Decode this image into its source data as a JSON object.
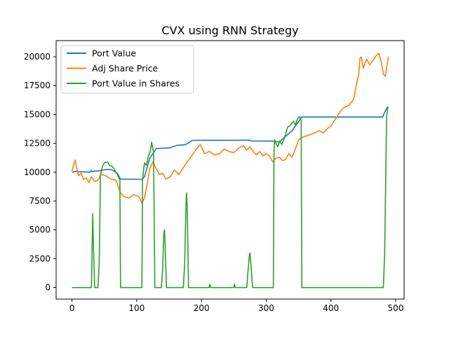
{
  "chart_data": {
    "type": "line",
    "title": "CVX using RNN Strategy",
    "xlabel": "",
    "ylabel": "",
    "xlim": [
      -24.5,
      513
    ],
    "ylim": [
      -1000,
      21400
    ],
    "xticks": [
      0,
      100,
      200,
      300,
      400,
      500
    ],
    "yticks": [
      0,
      2500,
      5000,
      7500,
      10000,
      12500,
      15000,
      17500,
      20000
    ],
    "grid": false,
    "legend_position": "top-left",
    "series": [
      {
        "name": "Port Value",
        "color": "#1f77b4",
        "points": [
          [
            0,
            10000
          ],
          [
            5,
            10050
          ],
          [
            28,
            10000
          ],
          [
            30,
            10150
          ],
          [
            32,
            10050
          ],
          [
            35,
            10100
          ],
          [
            40,
            10100
          ],
          [
            45,
            10150
          ],
          [
            55,
            10250
          ],
          [
            62,
            10200
          ],
          [
            70,
            9900
          ],
          [
            75,
            9400
          ],
          [
            108,
            9380
          ],
          [
            112,
            9600
          ],
          [
            120,
            11200
          ],
          [
            130,
            12050
          ],
          [
            150,
            12100
          ],
          [
            162,
            12320
          ],
          [
            175,
            12380
          ],
          [
            182,
            12600
          ],
          [
            185,
            12750
          ],
          [
            205,
            12760
          ],
          [
            250,
            12760
          ],
          [
            275,
            12780
          ],
          [
            277,
            12700
          ],
          [
            295,
            12690
          ],
          [
            310,
            12700
          ],
          [
            320,
            12600
          ],
          [
            340,
            13600
          ],
          [
            355,
            14780
          ],
          [
            480,
            14780
          ],
          [
            483,
            15200
          ],
          [
            486,
            15500
          ],
          [
            488,
            15700
          ]
        ]
      },
      {
        "name": "Adj Share Price",
        "color": "#ff7f0e",
        "points": [
          [
            0,
            10100
          ],
          [
            3,
            10700
          ],
          [
            5,
            11050
          ],
          [
            7,
            10400
          ],
          [
            10,
            9700
          ],
          [
            14,
            9900
          ],
          [
            18,
            9350
          ],
          [
            22,
            9500
          ],
          [
            26,
            9100
          ],
          [
            30,
            9600
          ],
          [
            35,
            9200
          ],
          [
            40,
            9300
          ],
          [
            45,
            9800
          ],
          [
            52,
            9700
          ],
          [
            60,
            9400
          ],
          [
            68,
            9300
          ],
          [
            75,
            8200
          ],
          [
            80,
            7900
          ],
          [
            88,
            7750
          ],
          [
            95,
            8050
          ],
          [
            103,
            7900
          ],
          [
            108,
            7300
          ],
          [
            112,
            7800
          ],
          [
            116,
            8900
          ],
          [
            120,
            10300
          ],
          [
            125,
            10900
          ],
          [
            130,
            10300
          ],
          [
            135,
            9800
          ],
          [
            140,
            9900
          ],
          [
            145,
            9400
          ],
          [
            152,
            9600
          ],
          [
            158,
            10200
          ],
          [
            165,
            9800
          ],
          [
            172,
            10400
          ],
          [
            178,
            10900
          ],
          [
            185,
            11400
          ],
          [
            192,
            12000
          ],
          [
            198,
            12400
          ],
          [
            205,
            11600
          ],
          [
            212,
            11800
          ],
          [
            220,
            11500
          ],
          [
            228,
            11600
          ],
          [
            235,
            12000
          ],
          [
            242,
            11800
          ],
          [
            250,
            11700
          ],
          [
            258,
            12100
          ],
          [
            265,
            12300
          ],
          [
            270,
            11900
          ],
          [
            275,
            12200
          ],
          [
            280,
            11800
          ],
          [
            285,
            11500
          ],
          [
            290,
            11800
          ],
          [
            295,
            11400
          ],
          [
            300,
            11600
          ],
          [
            305,
            11400
          ],
          [
            310,
            10900
          ],
          [
            315,
            11200
          ],
          [
            320,
            11300
          ],
          [
            325,
            11000
          ],
          [
            330,
            11100
          ],
          [
            335,
            11600
          ],
          [
            340,
            11300
          ],
          [
            345,
            12000
          ],
          [
            350,
            12800
          ],
          [
            355,
            13000
          ],
          [
            365,
            13200
          ],
          [
            375,
            13400
          ],
          [
            382,
            13600
          ],
          [
            388,
            13400
          ],
          [
            395,
            13800
          ],
          [
            400,
            14000
          ],
          [
            408,
            14700
          ],
          [
            415,
            15300
          ],
          [
            420,
            15600
          ],
          [
            428,
            15800
          ],
          [
            435,
            16300
          ],
          [
            440,
            17800
          ],
          [
            443,
            18500
          ],
          [
            445,
            19900
          ],
          [
            447,
            20000
          ],
          [
            450,
            19000
          ],
          [
            455,
            19800
          ],
          [
            460,
            19300
          ],
          [
            465,
            19700
          ],
          [
            470,
            20100
          ],
          [
            474,
            20300
          ],
          [
            478,
            19500
          ],
          [
            481,
            18500
          ],
          [
            484,
            18300
          ],
          [
            487,
            19400
          ],
          [
            489,
            20000
          ]
        ]
      },
      {
        "name": "Port Value in Shares",
        "color": "#2ca02c",
        "points": [
          [
            0,
            0
          ],
          [
            30,
            0
          ],
          [
            31,
            3000
          ],
          [
            32,
            6400
          ],
          [
            33,
            4000
          ],
          [
            34,
            2000
          ],
          [
            35,
            0
          ],
          [
            40,
            0
          ],
          [
            42,
            2000
          ],
          [
            44,
            9800
          ],
          [
            47,
            10500
          ],
          [
            50,
            10800
          ],
          [
            55,
            10900
          ],
          [
            58,
            10600
          ],
          [
            62,
            10500
          ],
          [
            65,
            10300
          ],
          [
            68,
            10000
          ],
          [
            71,
            9700
          ],
          [
            73,
            9400
          ],
          [
            74,
            9400
          ],
          [
            75,
            0
          ],
          [
            108,
            0
          ],
          [
            109,
            9400
          ],
          [
            112,
            10800
          ],
          [
            115,
            10600
          ],
          [
            118,
            11400
          ],
          [
            121,
            11800
          ],
          [
            123,
            12600
          ],
          [
            126,
            11700
          ],
          [
            128,
            0
          ],
          [
            138,
            0
          ],
          [
            140,
            1500
          ],
          [
            142,
            4800
          ],
          [
            143,
            5000
          ],
          [
            144,
            3500
          ],
          [
            146,
            0
          ],
          [
            172,
            0
          ],
          [
            174,
            2000
          ],
          [
            176,
            7000
          ],
          [
            177,
            8200
          ],
          [
            178,
            7000
          ],
          [
            180,
            0
          ],
          [
            212,
            0
          ],
          [
            213,
            300
          ],
          [
            214,
            0
          ],
          [
            250,
            0
          ],
          [
            251,
            300
          ],
          [
            252,
            0
          ],
          [
            270,
            0
          ],
          [
            272,
            1500
          ],
          [
            274,
            2800
          ],
          [
            275,
            3000
          ],
          [
            277,
            1500
          ],
          [
            279,
            0
          ],
          [
            311,
            0
          ],
          [
            312,
            11500
          ],
          [
            313,
            12800
          ],
          [
            315,
            12500
          ],
          [
            318,
            12200
          ],
          [
            321,
            12700
          ],
          [
            324,
            12400
          ],
          [
            327,
            12800
          ],
          [
            330,
            13300
          ],
          [
            333,
            13900
          ],
          [
            336,
            14000
          ],
          [
            339,
            14200
          ],
          [
            342,
            14400
          ],
          [
            345,
            14100
          ],
          [
            349,
            14700
          ],
          [
            352,
            14800
          ],
          [
            354,
            14500
          ],
          [
            355,
            0
          ],
          [
            478,
            0
          ],
          [
            481,
            0
          ],
          [
            483,
            3000
          ],
          [
            486,
            14800
          ],
          [
            488,
            15700
          ]
        ]
      }
    ]
  }
}
